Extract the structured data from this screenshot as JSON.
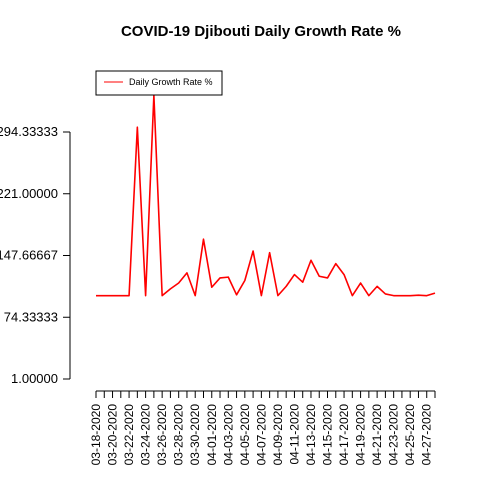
{
  "chart_data": {
    "type": "line",
    "title": "COVID-19 Djibouti Daily Growth Rate %",
    "xlabel": "",
    "ylabel": "",
    "legend": {
      "placement": "top-left",
      "entries": [
        "Daily Growth Rate %"
      ]
    },
    "series_color": "#ff0000",
    "ylim": [
      1.0,
      338.0
    ],
    "yticks": [
      "1.00000",
      "74.33333",
      "147.66667",
      "221.00000",
      "294.33333"
    ],
    "ytick_values": [
      1.0,
      74.33333,
      147.66667,
      221.0,
      294.33333
    ],
    "xtick_labels": [
      "03-18-2020",
      "03-20-2020",
      "03-22-2020",
      "03-24-2020",
      "03-26-2020",
      "03-28-2020",
      "03-30-2020",
      "04-01-2020",
      "04-03-2020",
      "04-05-2020",
      "04-07-2020",
      "04-09-2020",
      "04-11-2020",
      "04-13-2020",
      "04-15-2020",
      "04-17-2020",
      "04-19-2020",
      "04-21-2020",
      "04-23-2020",
      "04-25-2020",
      "04-27-2020"
    ],
    "x": [
      "03-18-2020",
      "03-19-2020",
      "03-20-2020",
      "03-21-2020",
      "03-22-2020",
      "03-23-2020",
      "03-24-2020",
      "03-25-2020",
      "03-26-2020",
      "03-27-2020",
      "03-28-2020",
      "03-29-2020",
      "03-30-2020",
      "03-31-2020",
      "04-01-2020",
      "04-02-2020",
      "04-03-2020",
      "04-04-2020",
      "04-05-2020",
      "04-06-2020",
      "04-07-2020",
      "04-08-2020",
      "04-09-2020",
      "04-10-2020",
      "04-11-2020",
      "04-12-2020",
      "04-13-2020",
      "04-14-2020",
      "04-15-2020",
      "04-16-2020",
      "04-17-2020",
      "04-18-2020",
      "04-19-2020",
      "04-20-2020",
      "04-21-2020",
      "04-22-2020",
      "04-23-2020",
      "04-24-2020",
      "04-25-2020",
      "04-26-2020",
      "04-27-2020",
      "04-28-2020"
    ],
    "series": [
      {
        "name": "Daily Growth Rate %",
        "values": [
          100,
          100,
          100,
          100,
          100,
          300,
          100,
          338,
          100,
          108,
          115,
          127,
          100,
          167,
          110,
          121,
          122,
          101,
          118,
          153,
          100,
          151,
          100,
          111,
          125,
          116,
          142,
          123,
          121,
          138,
          125,
          100,
          115,
          100,
          111,
          102,
          100,
          100,
          100,
          100.5,
          100,
          103
        ]
      }
    ]
  }
}
